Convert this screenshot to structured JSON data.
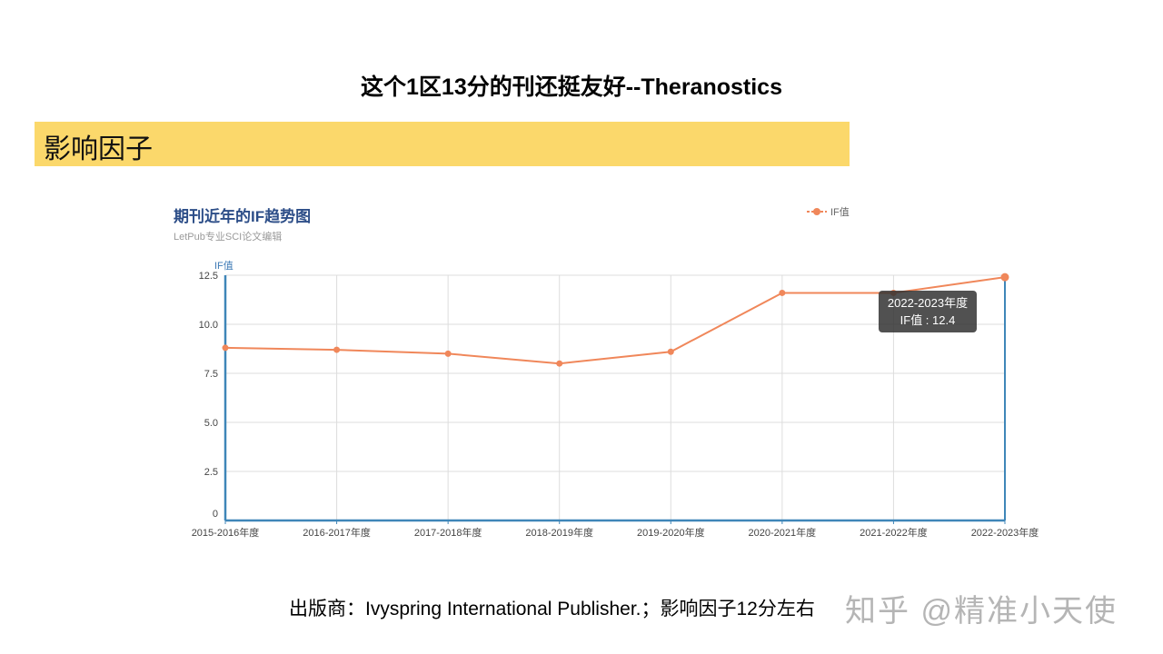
{
  "slide": {
    "title": "这个1区13分的刊还挺友好--Theranostics",
    "section_label": "影响因子",
    "footer": "出版商：Ivyspring International Publisher.；影响因子12分左右",
    "watermark": "知乎 @精准小天使"
  },
  "chart": {
    "title": "期刊近年的IF趋势图",
    "subtitle": "LetPub专业SCI论文编辑",
    "legend_label": "IF值",
    "y_axis_label": "IF值",
    "tooltip": {
      "line1": "2022-2023年度",
      "line2": "IF值 : 12.4"
    },
    "colors": {
      "line": "#f0875a",
      "axis": "#3f86b8",
      "grid": "#dddddd",
      "title": "#2d4e88"
    }
  },
  "chart_data": {
    "type": "line",
    "title": "期刊近年的IF趋势图",
    "subtitle": "LetPub专业SCI论文编辑",
    "xlabel": "",
    "ylabel": "IF值",
    "categories": [
      "2015-2016年度",
      "2016-2017年度",
      "2017-2018年度",
      "2018-2019年度",
      "2019-2020年度",
      "2020-2021年度",
      "2021-2022年度",
      "2022-2023年度"
    ],
    "series": [
      {
        "name": "IF值",
        "values": [
          8.8,
          8.7,
          8.5,
          8.0,
          8.6,
          11.6,
          11.6,
          12.4
        ]
      }
    ],
    "yticks": [
      "0",
      "2.5",
      "5.0",
      "7.5",
      "10.0",
      "12.5"
    ],
    "ylim": [
      0,
      12.5
    ],
    "grid": true,
    "legend_position": "top-right"
  }
}
